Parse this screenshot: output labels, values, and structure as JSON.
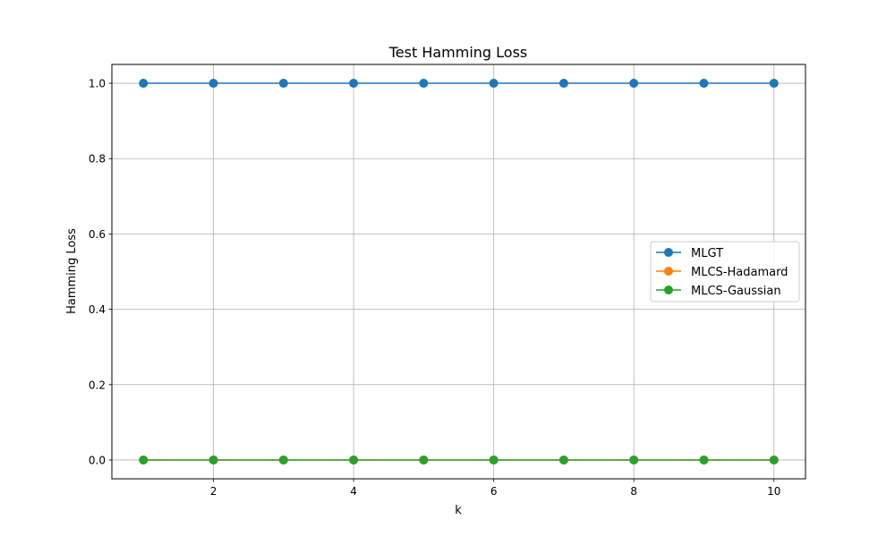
{
  "chart_data": {
    "type": "line",
    "title": "Test Hamming Loss",
    "xlabel": "k",
    "ylabel": "Hamming Loss",
    "x": [
      1,
      2,
      3,
      4,
      5,
      6,
      7,
      8,
      9,
      10
    ],
    "xlim": [
      0.55,
      10.45
    ],
    "ylim": [
      -0.05,
      1.05
    ],
    "xticks": [
      2,
      4,
      6,
      8,
      10
    ],
    "yticks": [
      0.0,
      0.2,
      0.4,
      0.6,
      0.8,
      1.0
    ],
    "xtick_labels": [
      "2",
      "4",
      "6",
      "8",
      "10"
    ],
    "ytick_labels": [
      "0.0",
      "0.2",
      "0.4",
      "0.6",
      "0.8",
      "1.0"
    ],
    "grid": true,
    "legend_position": "center-right",
    "series": [
      {
        "name": "MLGT",
        "color": "#1f77b4",
        "marker": "circle",
        "values": [
          1.0,
          1.0,
          1.0,
          1.0,
          1.0,
          1.0,
          1.0,
          1.0,
          1.0,
          1.0
        ]
      },
      {
        "name": "MLCS-Hadamard",
        "color": "#ff7f0e",
        "marker": "circle",
        "values": [
          0.0,
          0.0,
          0.0,
          0.0,
          0.0,
          0.0,
          0.0,
          0.0,
          0.0,
          0.0
        ]
      },
      {
        "name": "MLCS-Gaussian",
        "color": "#2ca02c",
        "marker": "circle",
        "values": [
          0.0,
          0.0,
          0.0,
          0.0,
          0.0,
          0.0,
          0.0,
          0.0,
          0.0,
          0.0
        ]
      }
    ]
  }
}
